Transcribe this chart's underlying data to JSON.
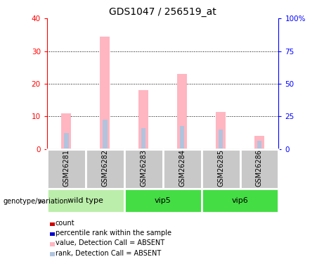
{
  "title": "GDS1047 / 256519_at",
  "samples": [
    "GSM26281",
    "GSM26282",
    "GSM26283",
    "GSM26284",
    "GSM26285",
    "GSM26286"
  ],
  "value_absent": [
    11.0,
    34.5,
    18.0,
    23.0,
    11.5,
    4.0
  ],
  "rank_absent_pct": [
    12.5,
    22.5,
    16.25,
    17.5,
    15.0,
    6.25
  ],
  "count_red": [
    0.4,
    0.8,
    0.4,
    0.4,
    0.4,
    0.25
  ],
  "ylim_left": [
    0,
    40
  ],
  "ylim_right": [
    0,
    100
  ],
  "yticks_left": [
    0,
    10,
    20,
    30,
    40
  ],
  "yticks_right": [
    0,
    25,
    50,
    75,
    100
  ],
  "bar_color_absent": "#FFB6C1",
  "rank_color_absent": "#B0C4DE",
  "count_color": "#CC0000",
  "sample_box_color": "#C8C8C8",
  "group_colors": [
    "#BBEEAA",
    "#44DD44",
    "#44DD44"
  ],
  "group_ranges": [
    [
      0,
      1
    ],
    [
      2,
      3
    ],
    [
      4,
      5
    ]
  ],
  "group_names": [
    "wild type",
    "vip5",
    "vip6"
  ],
  "legend_items": [
    {
      "color": "#CC0000",
      "label": "count"
    },
    {
      "color": "#0000CC",
      "label": "percentile rank within the sample"
    },
    {
      "color": "#FFB6C1",
      "label": "value, Detection Call = ABSENT"
    },
    {
      "color": "#B0C4DE",
      "label": "rank, Detection Call = ABSENT"
    }
  ],
  "bar_width": 0.25,
  "rank_bar_width": 0.12
}
